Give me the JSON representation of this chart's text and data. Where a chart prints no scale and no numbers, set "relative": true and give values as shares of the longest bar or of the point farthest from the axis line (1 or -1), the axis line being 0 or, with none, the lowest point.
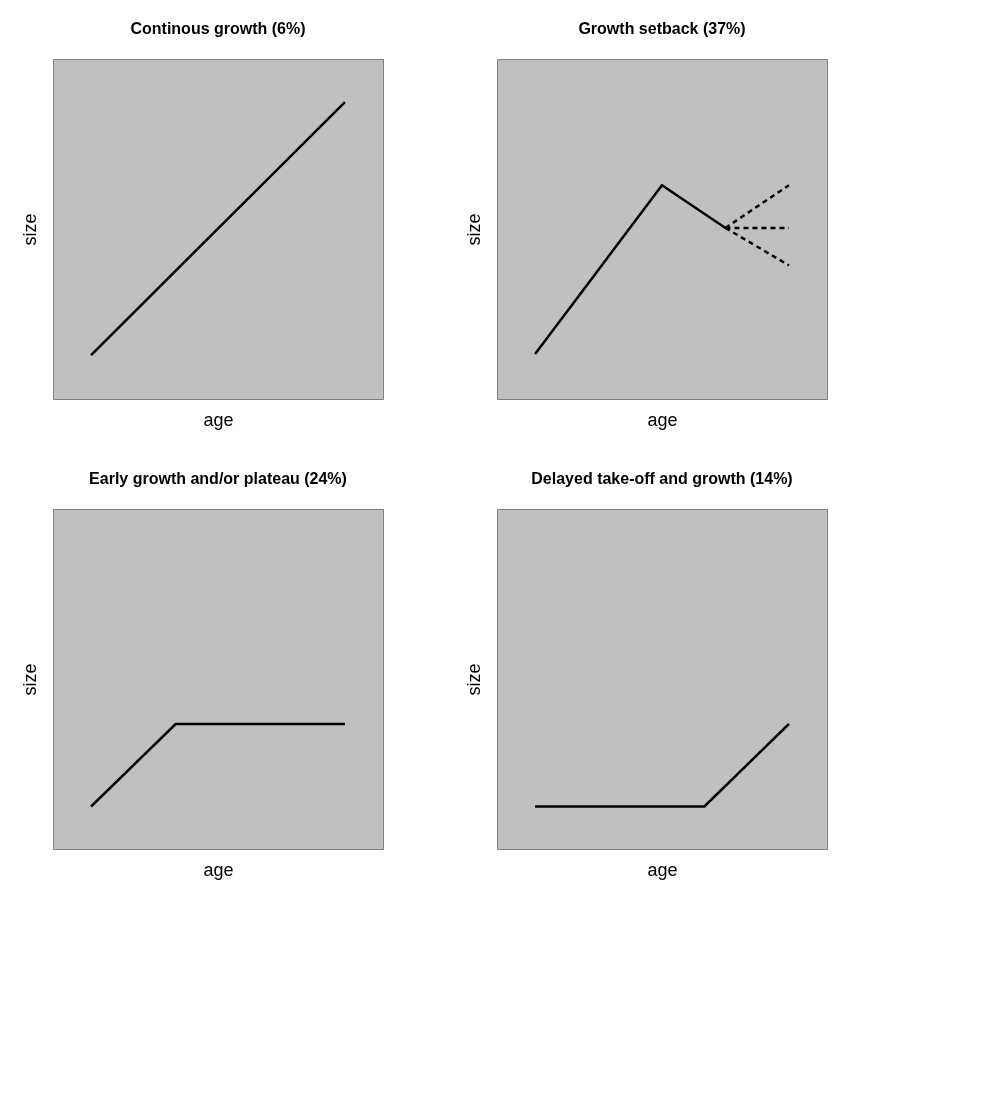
{
  "chart_data": [
    {
      "type": "line",
      "title": "Continous growth (6%)",
      "xlabel": "age",
      "ylabel": "size",
      "relative": true,
      "grid": false,
      "categories": [
        null,
        null
      ],
      "series": [
        {
          "color": "#000000",
          "line_style": "solid",
          "values": [
            0.148,
            1
          ]
        }
      ]
    },
    {
      "type": "line",
      "title": "Growth setback (37%)",
      "xlabel": "age",
      "ylabel": "size",
      "relative": true,
      "grid": false,
      "categories": [
        null,
        null,
        null,
        null,
        null
      ],
      "series": [
        {
          "color": "#000000",
          "line_style": "solid",
          "values": [
            0.21,
            0.605,
            1,
            0.8,
            null
          ]
        },
        {
          "color": "#000000",
          "line_style": "dashed",
          "values": [
            null,
            null,
            null,
            0.8,
            1
          ]
        },
        {
          "color": "#000000",
          "line_style": "dashed",
          "values": [
            null,
            null,
            null,
            0.8,
            0.8
          ]
        },
        {
          "color": "#000000",
          "line_style": "dashed",
          "values": [
            null,
            null,
            null,
            0.8,
            0.625
          ]
        }
      ]
    },
    {
      "type": "line",
      "title": "Early growth and/or plateau (24%)",
      "xlabel": "age",
      "ylabel": "size",
      "relative": true,
      "grid": false,
      "categories": [
        null,
        null,
        null,
        null
      ],
      "series": [
        {
          "color": "#000000",
          "line_style": "solid",
          "values": [
            0.34,
            1,
            1,
            1
          ]
        }
      ]
    },
    {
      "type": "line",
      "title": "Delayed take-off and growth (14%)",
      "xlabel": "age",
      "ylabel": "size",
      "relative": true,
      "grid": false,
      "categories": [
        null,
        null,
        null,
        null
      ],
      "series": [
        {
          "color": "#000000",
          "line_style": "solid",
          "values": [
            0.34,
            0.34,
            0.34,
            1
          ]
        }
      ]
    }
  ]
}
